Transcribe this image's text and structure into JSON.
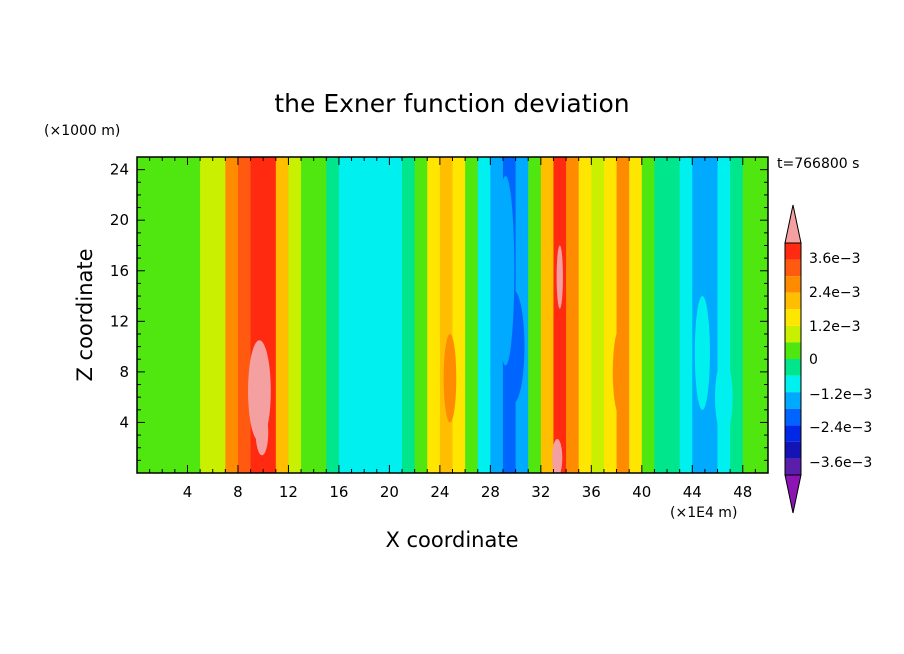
{
  "chart_data": {
    "type": "heatmap",
    "title": "the Exner function deviation",
    "xlabel": "X coordinate",
    "ylabel": "Z coordinate",
    "x_unit": "(×1E4 m)",
    "y_unit": "(×1000 m)",
    "time_label": "t=766800 s",
    "xlim": [
      0,
      50
    ],
    "ylim": [
      0,
      25
    ],
    "x_ticks": [
      4,
      8,
      12,
      16,
      20,
      24,
      28,
      32,
      36,
      40,
      44,
      48
    ],
    "y_ticks": [
      4,
      8,
      12,
      16,
      20,
      24
    ],
    "colorbar": {
      "labels": [
        "3.6e−3",
        "2.4e−3",
        "1.2e−3",
        "0",
        "−1.2e−3",
        "−2.4e−3",
        "−3.6e−3"
      ],
      "levels": [
        0.0042,
        0.0036,
        0.003,
        0.0024,
        0.0018,
        0.0012,
        0.0006,
        0,
        -0.0006,
        -0.0012,
        -0.0018,
        -0.0024,
        -0.003,
        -0.0036,
        -0.0042
      ],
      "colors": [
        "#f5a0a0",
        "#ff2a10",
        "#ff5a10",
        "#ff8c00",
        "#ffbe00",
        "#ffe600",
        "#c8f000",
        "#50e610",
        "#00e68c",
        "#00f0f0",
        "#00aaff",
        "#0064ff",
        "#0028e6",
        "#1414b4",
        "#5a1eaa",
        "#8c14b4"
      ]
    },
    "column_profile": {
      "x": [
        0.5,
        1.5,
        2.5,
        3.5,
        4.5,
        5.5,
        6.5,
        7.5,
        8.5,
        9.5,
        10.5,
        11.5,
        12.5,
        13.5,
        14.5,
        15.5,
        16.5,
        17.5,
        18.5,
        19.5,
        20.5,
        21.5,
        22.5,
        23.5,
        24.5,
        25.5,
        26.5,
        27.5,
        28.5,
        29.5,
        30.5,
        31.5,
        32.5,
        33.5,
        34.5,
        35.5,
        36.5,
        37.5,
        38.5,
        39.5,
        40.5,
        41.5,
        42.5,
        43.5,
        44.5,
        45.5,
        46.5,
        47.5,
        48.5,
        49.5
      ],
      "values": [
        0.0001,
        0.0002,
        0.0003,
        0.0002,
        0.0004,
        0.0006,
        0.0011,
        0.0025,
        0.0034,
        0.0038,
        0.0036,
        0.0022,
        0.0009,
        0.0004,
        0.0001,
        -0.0005,
        -0.0008,
        -0.0009,
        -0.0009,
        -0.0008,
        -0.0007,
        -0.0004,
        0.0003,
        0.0014,
        0.0022,
        0.0012,
        0.0001,
        -0.0009,
        -0.0016,
        -0.0021,
        -0.0014,
        0.0001,
        0.0022,
        0.0037,
        0.0027,
        0.0012,
        0.0008,
        0.0017,
        0.0025,
        0.0014,
        0.0002,
        -0.0004,
        -0.0006,
        -0.0009,
        -0.0013,
        -0.0014,
        -0.0011,
        -0.0005,
        0.0001,
        0.0002
      ]
    }
  }
}
